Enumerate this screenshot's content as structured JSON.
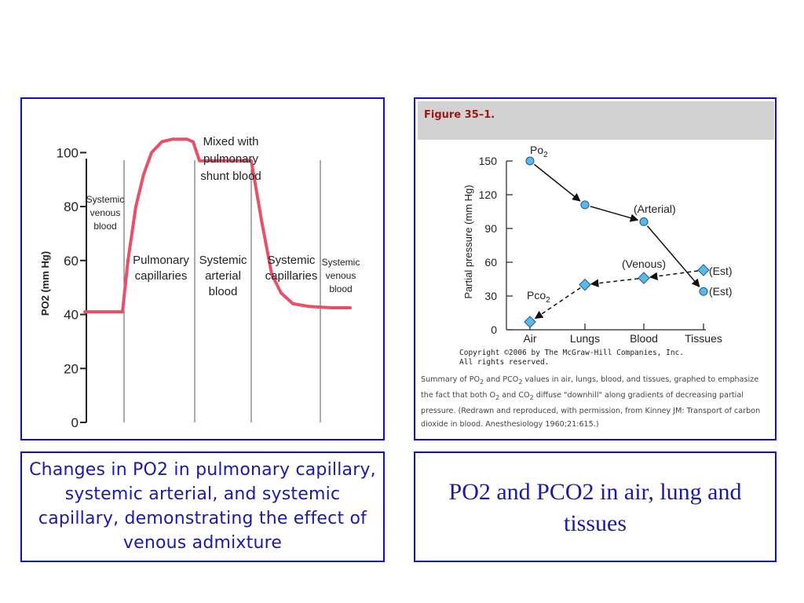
{
  "chart_data": [
    {
      "type": "line",
      "ylabel": "PO2 (mm Hg)",
      "ylim": [
        0,
        110
      ],
      "yticks": [
        0,
        20,
        40,
        60,
        80,
        100
      ],
      "region_labels": [
        {
          "key": "sv1",
          "lines": [
            "Systemic",
            "venous",
            "blood"
          ]
        },
        {
          "key": "pc",
          "lines": [
            "Pulmonary",
            "capillaries"
          ]
        },
        {
          "key": "sa",
          "lines": [
            "Systemic",
            "arterial",
            "blood"
          ]
        },
        {
          "key": "sc",
          "lines": [
            "Systemic",
            "capillaries"
          ]
        },
        {
          "key": "sv2",
          "lines": [
            "Systemic",
            "venous",
            "blood"
          ]
        }
      ],
      "annotation": [
        "Mixed with",
        "pulmonary",
        "shunt blood"
      ],
      "series": [
        {
          "color": "#e8506a",
          "y": [
            41,
            41,
            41,
            41,
            60,
            80,
            92,
            100,
            104,
            105,
            105,
            104,
            97,
            97,
            97,
            75,
            55,
            48,
            44,
            43,
            42.5,
            42.5
          ]
        }
      ]
    },
    {
      "type": "line",
      "categories": [
        "Air",
        "Lungs",
        "Blood",
        "Tissues"
      ],
      "ylabel": "Partial pressure (mm Hg)",
      "ylim": [
        0,
        150
      ],
      "yticks": [
        0,
        30,
        60,
        90,
        120,
        150
      ],
      "series": [
        {
          "name": "Po2",
          "values": [
            150,
            111,
            96,
            34
          ],
          "style": "solid"
        },
        {
          "name": "Pco2",
          "values": [
            7,
            40,
            46,
            53
          ],
          "style": "dashed"
        }
      ],
      "annotations": [
        {
          "text": "(Arterial)"
        },
        {
          "text": "(Venous)"
        },
        {
          "text": "(Est)",
          "series": "Pco2"
        },
        {
          "text": "(Est)",
          "series": "Po2"
        }
      ]
    }
  ],
  "figure": {
    "label": "Figure 35–1.",
    "copyright_line1": "Copyright ©2006 by The McGraw-Hill Companies, Inc.",
    "copyright_line2": "All rights reserved.",
    "caption_parts": [
      "Summary of PO",
      "2",
      " and PCO",
      "2",
      " values in air, lungs, blood, and tissues, graphed to emphasize the fact that both O",
      "2",
      " and CO",
      "2",
      " diffuse \"downhill\" along gradients of decreasing partial pressure. (Redrawn and reproduced, with permission, from Kinney JM: Transport of carbon dioxide in blood. Anesthesiology 1960;21:615.)"
    ]
  },
  "captions": {
    "left": "Changes in PO2 in pulmonary capillary, systemic arterial, and systemic capillary, demonstrating the effect of venous admixture",
    "right": "PO2 and PCO2 in air, lung and tissues"
  },
  "colors": {
    "border": "#1010cc",
    "curve": "#e8506a",
    "marker": "#5bb8e8",
    "caption_text": "#1a1aa6"
  }
}
